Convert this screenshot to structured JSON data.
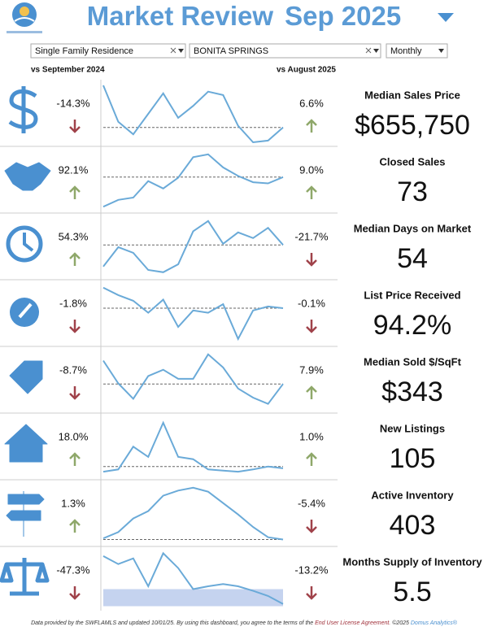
{
  "header": {
    "title": "Market Review",
    "period": "Sep 2025"
  },
  "filters": [
    "Single Family Residence",
    "BONITA SPRINGS",
    "Monthly"
  ],
  "comparisons": {
    "yoy": "vs September 2024",
    "mom": "vs August 2025"
  },
  "metrics": [
    {
      "name": "Median Sales Price",
      "value": "$655,750",
      "yoy": "-14.3%",
      "mom": "6.6%",
      "trend": {
        "values": [
          100,
          36,
          14,
          50,
          86,
          43,
          64,
          89,
          83,
          29,
          0,
          3,
          26
        ],
        "reference": 26,
        "ylim": [
          0,
          100
        ]
      }
    },
    {
      "name": "Closed Sales",
      "value": "73",
      "yoy": "92.1%",
      "mom": "9.0%",
      "trend": {
        "values": [
          4,
          16,
          20,
          49,
          36,
          55,
          91,
          96,
          73,
          58,
          47,
          45,
          56
        ],
        "reference": 56,
        "ylim": [
          0,
          100
        ]
      }
    },
    {
      "name": "Median Days on Market",
      "value": "54",
      "yoy": "54.3%",
      "mom": "-21.7%",
      "trend": {
        "values": [
          16,
          50,
          40,
          10,
          6,
          20,
          78,
          96,
          56,
          76,
          66,
          84,
          54
        ],
        "reference": 54,
        "ylim": [
          0,
          100
        ]
      }
    },
    {
      "name": "List Price Received",
      "value": "94.2%",
      "yoy": "-1.8%",
      "mom": "-0.1%",
      "trend": {
        "values": [
          96,
          83,
          73,
          52,
          75,
          27,
          56,
          52,
          67,
          6,
          56,
          63,
          60
        ],
        "reference": 60,
        "ylim": [
          0,
          100
        ]
      }
    },
    {
      "name": "Median Sold $/SqFt",
      "value": "$343",
      "yoy": "-8.7%",
      "mom": "7.9%",
      "trend": {
        "values": [
          85,
          45,
          18,
          58,
          69,
          53,
          53,
          96,
          73,
          36,
          20,
          9,
          44
        ],
        "reference": 44,
        "ylim": [
          0,
          100
        ]
      }
    },
    {
      "name": "New Listings",
      "value": "105",
      "yoy": "18.0%",
      "mom": "1.0%",
      "trend": {
        "values": [
          7,
          11,
          51,
          33,
          93,
          33,
          29,
          11,
          9,
          7,
          11,
          16,
          13
        ],
        "reference": 16,
        "ylim": [
          0,
          100
        ]
      }
    },
    {
      "name": "Active Inventory",
      "value": "403",
      "yoy": "1.3%",
      "mom": "-5.4%",
      "trend": {
        "values": [
          7,
          18,
          42,
          55,
          82,
          91,
          96,
          89,
          69,
          49,
          27,
          9,
          5
        ],
        "reference": 5,
        "ylim": [
          0,
          100
        ]
      }
    },
    {
      "name": "Months Supply of Inventory",
      "value": "5.5",
      "yoy": "-47.3%",
      "mom": "-13.2%",
      "trend": {
        "values": [
          93,
          79,
          89,
          40,
          98,
          72,
          35,
          40,
          44,
          40,
          32,
          23,
          9
        ],
        "band": [
          5,
          35
        ],
        "ylim": [
          0,
          100
        ]
      }
    }
  ],
  "footer": {
    "text": "Data provided by the SWFLAMLS and updated 10/01/25.  By using this dashboard, you agree to the terms of the ",
    "link": "End User License Agreement.",
    "copyright": "  ©2025 ",
    "brand": "Domus Analytics®"
  }
}
